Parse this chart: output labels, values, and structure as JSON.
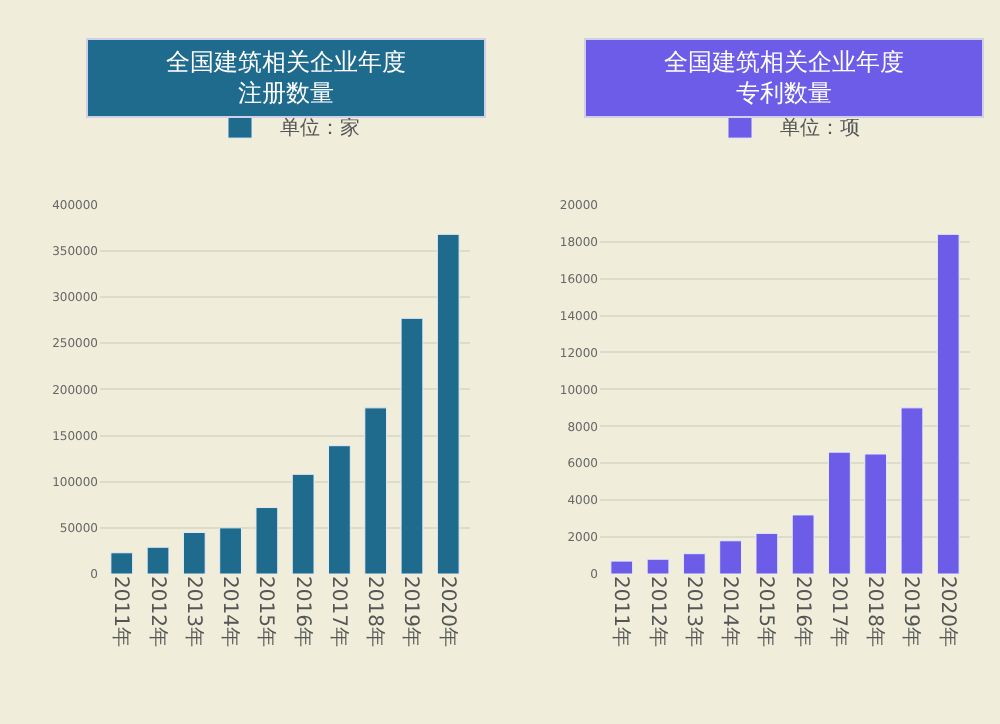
{
  "chart_data": [
    {
      "type": "bar",
      "title": "全国建筑相关企业年度注册数量",
      "categories": [
        "2011年",
        "2012年",
        "2013年",
        "2014年",
        "2015年",
        "2016年",
        "2017年",
        "2018年",
        "2019年",
        "2020年"
      ],
      "series": [
        {
          "name": "单位：家",
          "color": "#1f6b8e",
          "values": [
            23000,
            29000,
            45000,
            50000,
            72000,
            108000,
            139000,
            180000,
            277000,
            368000
          ]
        }
      ],
      "ylim": [
        0,
        400000
      ],
      "yticks": [
        0,
        50000,
        100000,
        150000,
        200000,
        250000,
        300000,
        350000,
        400000
      ],
      "grid": "y",
      "legend": "top"
    },
    {
      "type": "bar",
      "title": "全国建筑相关企业年度专利数量",
      "categories": [
        "2011年",
        "2012年",
        "2013年",
        "2014年",
        "2015年",
        "2016年",
        "2017年",
        "2018年",
        "2019年",
        "2020年"
      ],
      "series": [
        {
          "name": "单位：项",
          "color": "#6c5ce7",
          "values": [
            700,
            800,
            1100,
            1800,
            2200,
            3200,
            6600,
            6500,
            9000,
            18400
          ]
        }
      ],
      "ylim": [
        0,
        20000
      ],
      "yticks": [
        0,
        2000,
        4000,
        6000,
        8000,
        10000,
        12000,
        14000,
        16000,
        18000,
        20000
      ],
      "grid": "y",
      "legend": "top"
    }
  ]
}
